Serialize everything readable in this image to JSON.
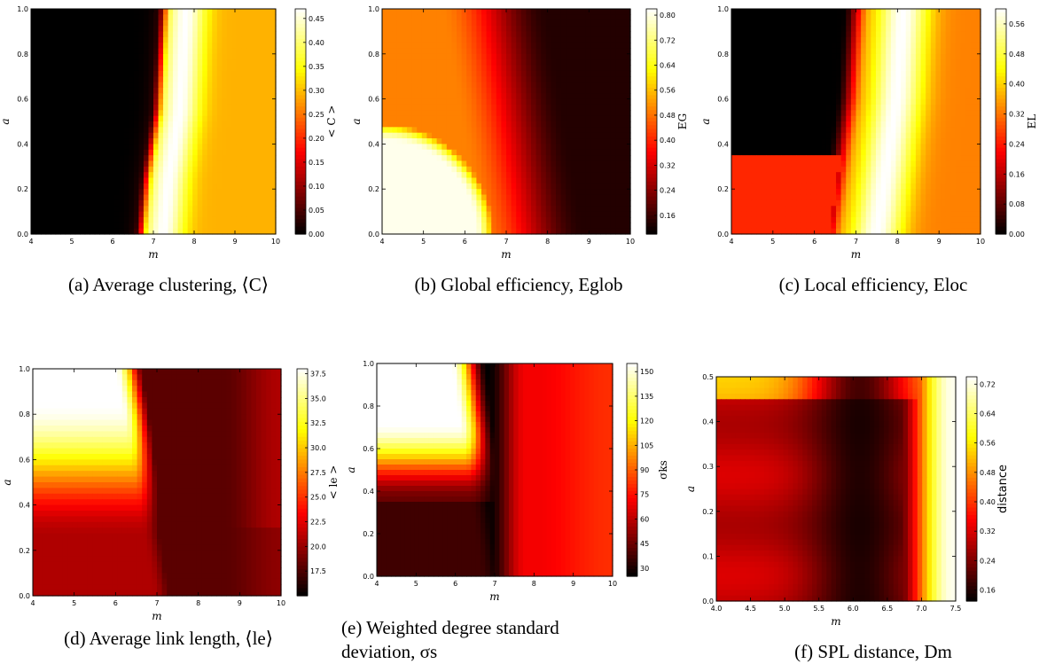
{
  "chart_data": [
    {
      "type": "heatmap",
      "panel": "a",
      "caption": "(a) Average clustering, ⟨C⟩",
      "xlabel": "m",
      "ylabel": "a",
      "xlim": [
        4,
        10
      ],
      "ylim": [
        0,
        1
      ],
      "xticks": [
        "4",
        "5",
        "6",
        "7",
        "8",
        "9",
        "10"
      ],
      "yticks": [
        "0.0",
        "0.2",
        "0.4",
        "0.6",
        "0.8",
        "1.0"
      ],
      "colorbar": {
        "label": "< C >",
        "min": 0.0,
        "max": 0.47,
        "ticks": [
          "0.00",
          "0.05",
          "0.10",
          "0.15",
          "0.20",
          "0.25",
          "0.30",
          "0.35",
          "0.40",
          "0.45"
        ]
      },
      "pattern": "ridge",
      "description_points": {
        "low_region": "m < 6.5 near 0.0",
        "ridge_peak": 0.47,
        "right_plateau": 0.3
      }
    },
    {
      "type": "heatmap",
      "panel": "b",
      "caption": "(b) Global efficiency, Eglob",
      "xlabel": "m",
      "ylabel": "a",
      "xlim": [
        4,
        10
      ],
      "ylim": [
        0,
        1
      ],
      "xticks": [
        "4",
        "5",
        "6",
        "7",
        "8",
        "9",
        "10"
      ],
      "yticks": [
        "0.0",
        "0.2",
        "0.4",
        "0.6",
        "0.8",
        "1.0"
      ],
      "colorbar": {
        "label": "EG",
        "min": 0.1,
        "max": 0.82,
        "ticks": [
          "0.16",
          "0.24",
          "0.32",
          "0.40",
          "0.48",
          "0.56",
          "0.64",
          "0.72",
          "0.80"
        ]
      },
      "pattern": "global"
    },
    {
      "type": "heatmap",
      "panel": "c",
      "caption": "(c) Local efficiency, Eloc",
      "xlabel": "m",
      "ylabel": "a",
      "xlim": [
        4,
        10
      ],
      "ylim": [
        0,
        1
      ],
      "xticks": [
        "4",
        "5",
        "6",
        "7",
        "8",
        "9",
        "10"
      ],
      "yticks": [
        "0.0",
        "0.2",
        "0.4",
        "0.6",
        "0.8",
        "1.0"
      ],
      "colorbar": {
        "label": "EL",
        "min": 0.0,
        "max": 0.6,
        "ticks": [
          "0.00",
          "0.08",
          "0.16",
          "0.24",
          "0.32",
          "0.40",
          "0.48",
          "0.56"
        ]
      },
      "pattern": "local"
    },
    {
      "type": "heatmap",
      "panel": "d",
      "caption": "(d) Average link length, ⟨le⟩",
      "xlabel": "m",
      "ylabel": "a",
      "xlim": [
        4,
        10
      ],
      "ylim": [
        0,
        1
      ],
      "xticks": [
        "4",
        "5",
        "6",
        "7",
        "8",
        "9",
        "10"
      ],
      "yticks": [
        "0.0",
        "0.2",
        "0.4",
        "0.6",
        "0.8",
        "1.0"
      ],
      "colorbar": {
        "label": "< le >",
        "min": 15.0,
        "max": 38.0,
        "ticks": [
          "17.5",
          "20.0",
          "22.5",
          "25.0",
          "27.5",
          "30.0",
          "32.5",
          "35.0",
          "37.5"
        ]
      },
      "pattern": "link"
    },
    {
      "type": "heatmap",
      "panel": "e",
      "caption": "(e) Weighted degree standard deviation, σs",
      "xlabel": "m",
      "ylabel": "a",
      "xlim": [
        4,
        10
      ],
      "ylim": [
        0,
        1
      ],
      "xticks": [
        "4",
        "5",
        "6",
        "7",
        "8",
        "9",
        "10"
      ],
      "yticks": [
        "0.0",
        "0.2",
        "0.4",
        "0.6",
        "0.8",
        "1.0"
      ],
      "colorbar": {
        "label": "σks",
        "min": 25,
        "max": 155,
        "ticks": [
          "30",
          "45",
          "60",
          "75",
          "90",
          "105",
          "120",
          "135",
          "150"
        ]
      },
      "pattern": "sigma"
    },
    {
      "type": "heatmap",
      "panel": "f",
      "caption": "(f) SPL distance, Dm",
      "xlabel": "m",
      "ylabel": "a",
      "xlim": [
        4.0,
        7.5
      ],
      "ylim": [
        0.0,
        0.5
      ],
      "xticks": [
        "4.0",
        "4.5",
        "5.0",
        "5.5",
        "6.0",
        "6.5",
        "7.0",
        "7.5"
      ],
      "yticks": [
        "0.0",
        "0.1",
        "0.2",
        "0.3",
        "0.4",
        "0.5"
      ],
      "colorbar": {
        "label": "distance",
        "min": 0.13,
        "max": 0.74,
        "ticks": [
          "0.16",
          "0.24",
          "0.32",
          "0.40",
          "0.48",
          "0.56",
          "0.64",
          "0.72"
        ]
      },
      "pattern": "spl"
    }
  ]
}
